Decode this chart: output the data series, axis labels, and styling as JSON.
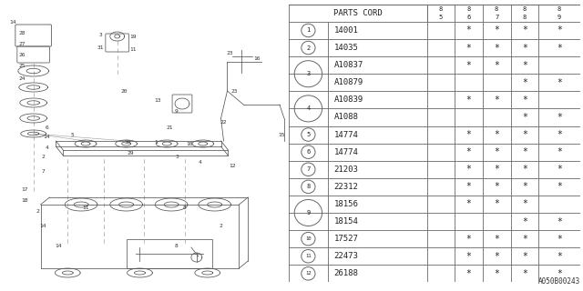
{
  "diagram_label": "A050B00243",
  "table_header": [
    "PARTS CORD",
    "85",
    "86",
    "87",
    "88",
    "89"
  ],
  "rows": [
    {
      "num": "1",
      "part": "14001",
      "cols": [
        false,
        true,
        true,
        true,
        true
      ]
    },
    {
      "num": "2",
      "part": "14035",
      "cols": [
        false,
        true,
        true,
        true,
        true
      ]
    },
    {
      "num": "3",
      "part": "A10837",
      "cols": [
        false,
        true,
        true,
        true,
        false
      ]
    },
    {
      "num": "3",
      "part": "A10879",
      "cols": [
        false,
        false,
        false,
        true,
        true
      ]
    },
    {
      "num": "4",
      "part": "A10839",
      "cols": [
        false,
        true,
        true,
        true,
        false
      ]
    },
    {
      "num": "4",
      "part": "A1088",
      "cols": [
        false,
        false,
        false,
        true,
        true
      ]
    },
    {
      "num": "5",
      "part": "14774",
      "cols": [
        false,
        true,
        true,
        true,
        true
      ]
    },
    {
      "num": "6",
      "part": "14774",
      "cols": [
        false,
        true,
        true,
        true,
        true
      ]
    },
    {
      "num": "7",
      "part": "21203",
      "cols": [
        false,
        true,
        true,
        true,
        true
      ]
    },
    {
      "num": "8",
      "part": "22312",
      "cols": [
        false,
        true,
        true,
        true,
        true
      ]
    },
    {
      "num": "9",
      "part": "18156",
      "cols": [
        false,
        true,
        true,
        true,
        false
      ]
    },
    {
      "num": "9",
      "part": "18154",
      "cols": [
        false,
        false,
        false,
        true,
        true
      ]
    },
    {
      "num": "10",
      "part": "17527",
      "cols": [
        false,
        true,
        true,
        true,
        true
      ]
    },
    {
      "num": "11",
      "part": "22473",
      "cols": [
        false,
        true,
        true,
        true,
        true
      ]
    },
    {
      "num": "12",
      "part": "26188",
      "cols": [
        false,
        true,
        true,
        true,
        true
      ]
    }
  ],
  "bg_color": "#ffffff",
  "line_color": "#666666",
  "text_color": "#222222",
  "font_size": 6.5,
  "header_font_size": 6.5,
  "star_char": "*"
}
